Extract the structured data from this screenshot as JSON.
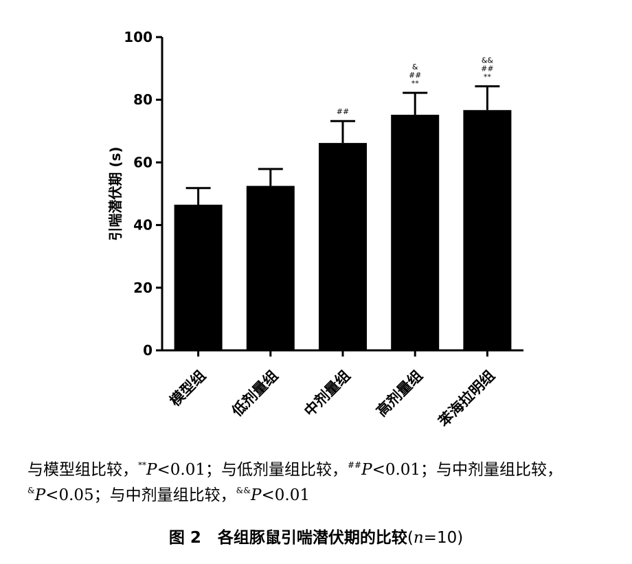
{
  "chart_data": {
    "type": "bar",
    "categories": [
      "模型组",
      "低剂量组",
      "中剂量组",
      "高剂量组",
      "苯海拉明组"
    ],
    "values": [
      46.5,
      52.5,
      66.2,
      75.2,
      76.7
    ],
    "errors": [
      5.3,
      5.4,
      7.0,
      7.0,
      7.6
    ],
    "significance": [
      [],
      [],
      [
        "##"
      ],
      [
        "&",
        "##",
        "**"
      ],
      [
        "&&",
        "##",
        "**"
      ]
    ],
    "ylabel": "引喘潜伏期 (s)",
    "xlabel": "",
    "ylim": [
      0,
      100
    ],
    "yticks": [
      0,
      20,
      40,
      60,
      80,
      100
    ],
    "bar_color": "#000000",
    "grid": false,
    "legend": "none"
  },
  "footnote": {
    "seg1": "与模型组比较，",
    "mark1": "**",
    "p_letter": "P",
    "val1": "<0.01；",
    "seg2": "与低剂量组比较，",
    "mark2": "##",
    "val2": "<0.01；",
    "seg3": "与中剂量组比较，",
    "mark3": "&",
    "val3": "<0.05；",
    "seg4": "与中剂量组比较，",
    "mark4": "&&",
    "val4": "<0.01"
  },
  "caption": {
    "label": "图 2",
    "title": "各组豚鼠引喘潜伏期的比较",
    "n_open": "(",
    "n_var": "n",
    "n_close": "=10)"
  }
}
